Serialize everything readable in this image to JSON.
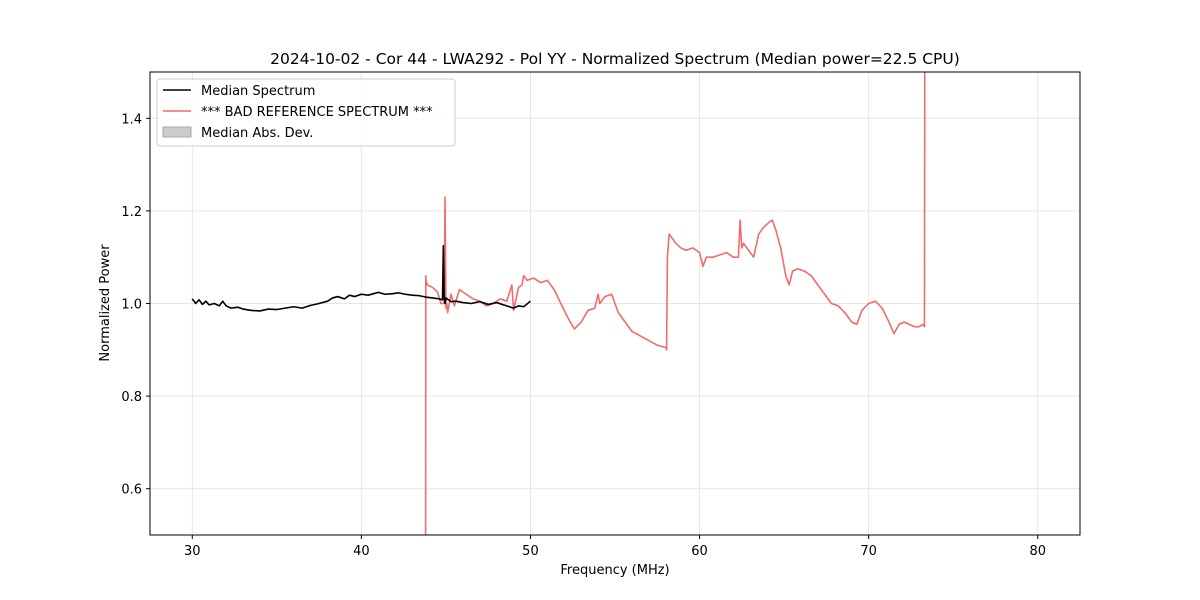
{
  "chart_data": {
    "type": "line",
    "title": "2024-10-02 - Cor 44 - LWA292 - Pol YY - Normalized Spectrum (Median power=22.5 CPU)",
    "xlabel": "Frequency (MHz)",
    "ylabel": "Normalized Power",
    "xlim": [
      27.5,
      82.5
    ],
    "ylim": [
      0.5,
      1.5
    ],
    "xticks": [
      30,
      40,
      50,
      60,
      70,
      80
    ],
    "yticks": [
      0.6,
      0.8,
      1.0,
      1.2,
      1.4
    ],
    "xtick_labels": [
      "30",
      "40",
      "50",
      "60",
      "70",
      "80"
    ],
    "ytick_labels": [
      "0.6",
      "0.8",
      "1.0",
      "1.2",
      "1.4"
    ],
    "grid": true,
    "legend_position": "top-left",
    "legend": [
      {
        "label": "Median Spectrum",
        "kind": "line",
        "color": "#000000"
      },
      {
        "label": "*** BAD REFERENCE SPECTRUM ***",
        "kind": "line",
        "color": "#f26b6b"
      },
      {
        "label": "Median Abs. Dev.",
        "kind": "patch",
        "color": "#cccccc"
      }
    ],
    "series": [
      {
        "name": "Median Spectrum",
        "color": "#000000",
        "x": [
          30.0,
          30.2,
          30.4,
          30.6,
          30.8,
          31.0,
          31.3,
          31.6,
          31.8,
          32.0,
          32.3,
          32.7,
          33.0,
          33.5,
          34.0,
          34.5,
          35.0,
          35.5,
          36.0,
          36.5,
          37.0,
          37.5,
          38.0,
          38.3,
          38.6,
          39.0,
          39.3,
          39.6,
          40.0,
          40.4,
          40.8,
          41.0,
          41.4,
          41.8,
          42.2,
          42.6,
          43.0,
          43.4,
          43.8,
          44.2,
          44.6,
          44.8,
          44.85,
          44.9,
          44.95,
          45.0,
          45.3,
          45.6,
          46.0,
          46.5,
          47.0,
          47.5,
          48.0,
          48.5,
          49.0,
          49.3,
          49.6,
          50.0
        ],
        "y": [
          1.01,
          1.0,
          1.008,
          0.998,
          1.005,
          0.997,
          1.0,
          0.995,
          1.005,
          0.995,
          0.99,
          0.992,
          0.988,
          0.985,
          0.984,
          0.988,
          0.987,
          0.99,
          0.993,
          0.99,
          0.996,
          1.0,
          1.005,
          1.012,
          1.015,
          1.01,
          1.018,
          1.015,
          1.02,
          1.018,
          1.022,
          1.024,
          1.02,
          1.021,
          1.023,
          1.02,
          1.018,
          1.017,
          1.014,
          1.012,
          1.01,
          1.008,
          1.125,
          1.01,
          1.0,
          1.012,
          1.004,
          1.005,
          1.002,
          1.0,
          1.004,
          0.998,
          1.002,
          0.996,
          0.99,
          0.995,
          0.993,
          1.005
        ]
      },
      {
        "name": "*** BAD REFERENCE SPECTRUM ***",
        "color": "#f26b6b",
        "x": [
          43.8,
          43.81,
          43.82,
          43.9,
          44.2,
          44.5,
          44.7,
          44.9,
          44.95,
          45.0,
          45.05,
          45.1,
          45.3,
          45.5,
          45.8,
          46.2,
          46.6,
          47.0,
          47.4,
          47.8,
          48.2,
          48.6,
          48.9,
          49.0,
          49.3,
          49.5,
          49.6,
          49.8,
          50.2,
          50.6,
          51.0,
          51.4,
          51.8,
          52.2,
          52.6,
          53.0,
          53.4,
          53.8,
          54.0,
          54.1,
          54.4,
          54.8,
          55.2,
          55.6,
          56.0,
          56.5,
          57.0,
          57.5,
          58.0,
          58.05,
          58.1,
          58.2,
          58.4,
          58.6,
          58.9,
          59.2,
          59.6,
          60.0,
          60.2,
          60.4,
          60.8,
          61.2,
          61.6,
          62.0,
          62.3,
          62.4,
          62.5,
          62.6,
          62.9,
          63.2,
          63.5,
          63.8,
          64.1,
          64.3,
          64.5,
          64.8,
          65.1,
          65.3,
          65.5,
          65.8,
          66.2,
          66.6,
          67.0,
          67.4,
          67.8,
          68.2,
          68.6,
          69.0,
          69.3,
          69.6,
          70.0,
          70.4,
          70.8,
          71.2,
          71.5,
          71.8,
          72.1,
          72.4,
          72.7,
          73.0,
          73.2,
          73.3,
          73.32,
          73.34
        ],
        "y": [
          0.5,
          1.06,
          1.05,
          1.04,
          1.035,
          1.025,
          1.0,
          1.0,
          1.23,
          0.99,
          1.0,
          0.98,
          1.02,
          0.995,
          1.03,
          1.02,
          1.01,
          1.005,
          0.995,
          1.0,
          1.01,
          1.005,
          1.04,
          0.985,
          1.035,
          1.04,
          1.06,
          1.05,
          1.055,
          1.045,
          1.05,
          1.03,
          1.0,
          0.97,
          0.945,
          0.96,
          0.985,
          0.99,
          1.02,
          1.0,
          1.015,
          1.02,
          0.98,
          0.96,
          0.94,
          0.93,
          0.92,
          0.91,
          0.905,
          0.9,
          1.1,
          1.15,
          1.14,
          1.13,
          1.12,
          1.115,
          1.12,
          1.11,
          1.08,
          1.1,
          1.1,
          1.105,
          1.11,
          1.1,
          1.1,
          1.18,
          1.12,
          1.13,
          1.115,
          1.1,
          1.15,
          1.165,
          1.175,
          1.18,
          1.16,
          1.12,
          1.06,
          1.04,
          1.07,
          1.075,
          1.07,
          1.06,
          1.04,
          1.02,
          1.0,
          0.995,
          0.98,
          0.96,
          0.955,
          0.985,
          1.0,
          1.005,
          0.99,
          0.96,
          0.935,
          0.955,
          0.96,
          0.955,
          0.95,
          0.95,
          0.955,
          0.95,
          1.5,
          1.5
        ]
      }
    ]
  }
}
